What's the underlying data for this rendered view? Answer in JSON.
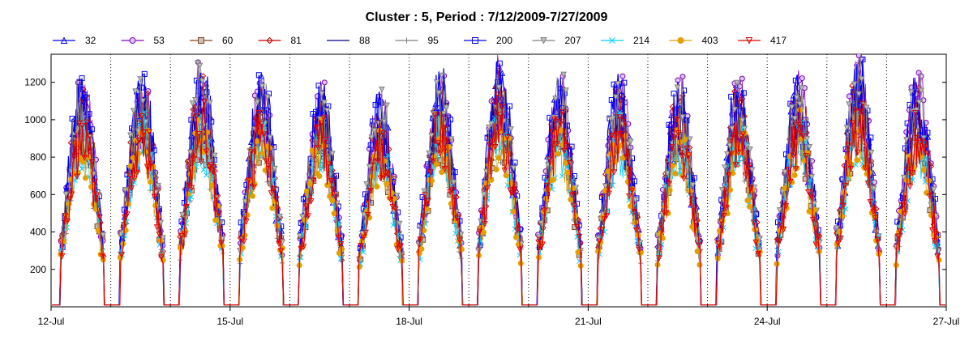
{
  "chart_data": {
    "type": "line",
    "title": "Cluster : 5, Period : 7/12/2009-7/27/2009",
    "xlabel": "",
    "ylabel": "",
    "x_range_days": [
      "12-Jul",
      "27-Jul"
    ],
    "ylim": [
      0,
      1350
    ],
    "y_ticks": [
      200,
      400,
      600,
      800,
      1000,
      1200
    ],
    "x_ticks": [
      "12-Jul",
      "15-Jul",
      "18-Jul",
      "21-Jul",
      "24-Jul",
      "27-Jul"
    ],
    "grid": "dotted vertical lines at midnight of each day",
    "legend_position": "top",
    "series": [
      {
        "name": "32",
        "color": "#0000ff",
        "marker": "triangle-up"
      },
      {
        "name": "53",
        "color": "#8000c0",
        "marker": "circle"
      },
      {
        "name": "60",
        "color": "#8b4513",
        "marker": "square-filled"
      },
      {
        "name": "81",
        "color": "#c00000",
        "marker": "diamond"
      },
      {
        "name": "88",
        "color": "#000080",
        "marker": "none"
      },
      {
        "name": "95",
        "color": "#808080",
        "marker": "plus"
      },
      {
        "name": "200",
        "color": "#0000ff",
        "marker": "square"
      },
      {
        "name": "207",
        "color": "#808080",
        "marker": "triangle-down-filled"
      },
      {
        "name": "214",
        "color": "#00d0ff",
        "marker": "x"
      },
      {
        "name": "403",
        "color": "#e0a000",
        "marker": "circle-filled"
      },
      {
        "name": "417",
        "color": "#e00000",
        "marker": "triangle-down"
      }
    ],
    "daily_peaks": [
      {
        "day": "12-Jul",
        "peak": 1250
      },
      {
        "day": "13-Jul",
        "peak": 1270
      },
      {
        "day": "14-Jul",
        "peak": 1300
      },
      {
        "day": "15-Jul",
        "peak": 1250
      },
      {
        "day": "16-Jul",
        "peak": 1220
      },
      {
        "day": "17-Jul",
        "peak": 1150
      },
      {
        "day": "18-Jul",
        "peak": 1250
      },
      {
        "day": "19-Jul",
        "peak": 1320
      },
      {
        "day": "20-Jul",
        "peak": 1240
      },
      {
        "day": "21-Jul",
        "peak": 1240
      },
      {
        "day": "22-Jul",
        "peak": 1230
      },
      {
        "day": "23-Jul",
        "peak": 1230
      },
      {
        "day": "24-Jul",
        "peak": 1260
      },
      {
        "day": "25-Jul",
        "peak": 1330
      },
      {
        "day": "26-Jul",
        "peak": 1250
      }
    ]
  }
}
